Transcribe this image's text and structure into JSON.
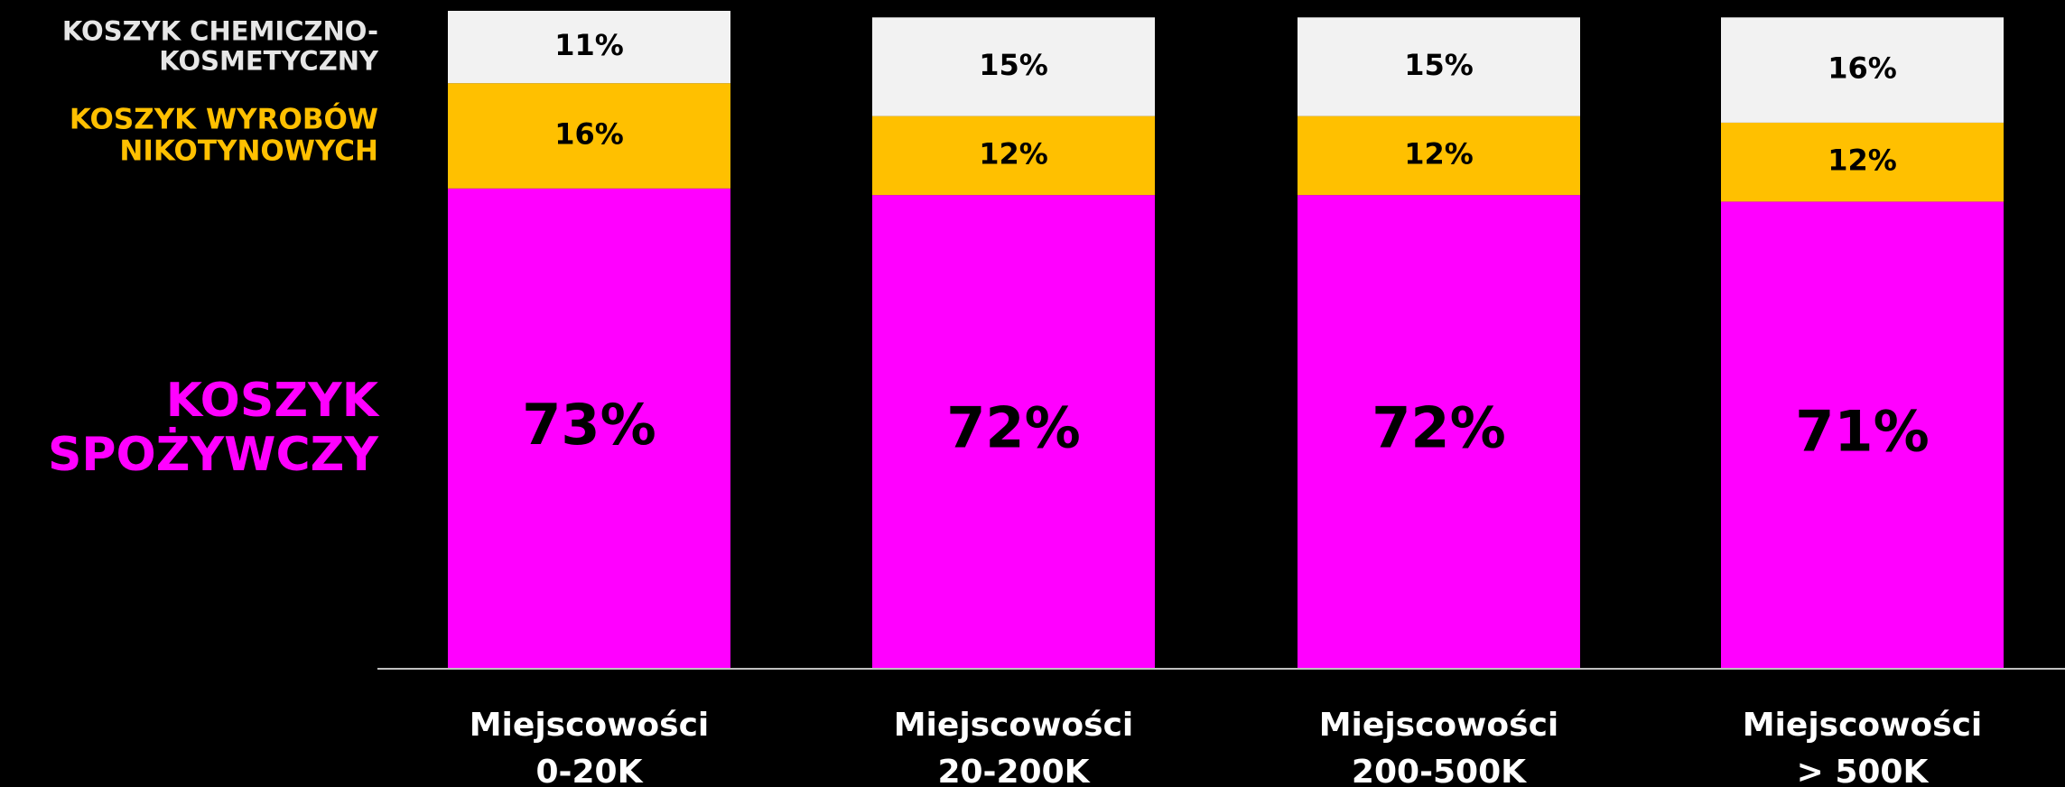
{
  "chart_data": {
    "type": "stacked_bar",
    "categories": [
      "Miejscowości\n0-20K",
      "Miejscowości\n20-200K",
      "Miejscowości\n200-500K",
      "Miejscowości\n> 500K"
    ],
    "ylim": [
      0,
      100
    ],
    "series": [
      {
        "name": "KOSZYK SPOŻYWCZY",
        "color": "#ff00ff",
        "values": [
          73,
          72,
          72,
          71
        ],
        "value_labels": [
          "73%",
          "72%",
          "72%",
          "71%"
        ]
      },
      {
        "name": "KOSZYK WYROBÓW NIKOTYNOWYCH",
        "color": "#ffc000",
        "values": [
          16,
          12,
          12,
          12
        ],
        "value_labels": [
          "16%",
          "12%",
          "12%",
          "12%"
        ]
      },
      {
        "name": "KOSZYK CHEMICZNO-KOSMETYCZNY",
        "color": "#f2f2f2",
        "values": [
          11,
          15,
          15,
          16
        ],
        "value_labels": [
          "11%",
          "15%",
          "15%",
          "16%"
        ]
      }
    ]
  }
}
